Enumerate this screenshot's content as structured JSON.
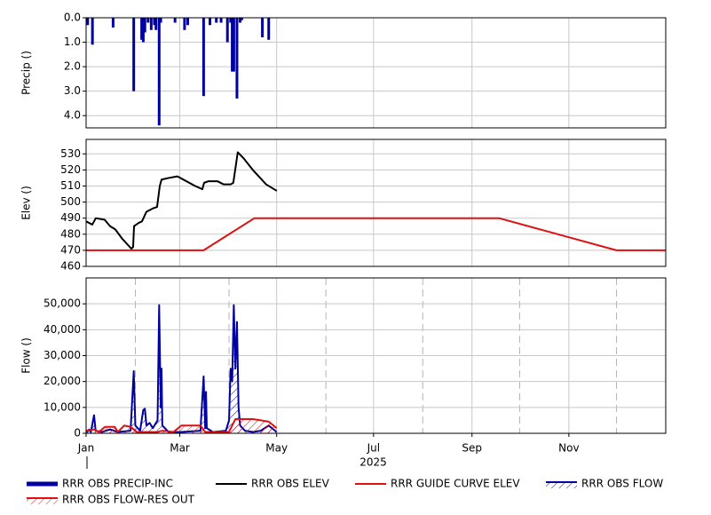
{
  "chart_data": [
    {
      "type": "bar",
      "ylabel": "Precip ()",
      "invert_y": true,
      "grid": true,
      "xlim": [
        0,
        365
      ],
      "xticks": [
        0,
        59,
        120,
        181,
        243,
        304
      ],
      "ylim": [
        0,
        4.5
      ],
      "yticks": [
        {
          "value": 0,
          "label": "0.0"
        },
        {
          "value": 1,
          "label": "1.0"
        },
        {
          "value": 2,
          "label": "2.0"
        },
        {
          "value": 3,
          "label": "3.0"
        },
        {
          "value": 4,
          "label": "4.0"
        }
      ],
      "series": [
        {
          "name": "RRR OBS PRECIP-INC",
          "color": "#0000a0",
          "x": [
            1,
            4,
            17,
            30,
            35,
            36,
            37,
            39,
            41,
            43,
            44,
            46,
            47,
            56,
            62,
            64,
            74,
            78,
            82,
            85,
            89,
            91,
            92,
            93,
            95,
            97,
            98,
            111,
            115
          ],
          "values": [
            0.3,
            1.1,
            0.4,
            3.0,
            0.9,
            1.0,
            0.6,
            0.2,
            0.5,
            0.3,
            0.5,
            4.4,
            0.2,
            0.2,
            0.5,
            0.3,
            3.2,
            0.3,
            0.2,
            0.2,
            1.0,
            0.2,
            2.2,
            2.2,
            3.3,
            0.2,
            0.1,
            0.8,
            0.9
          ]
        }
      ]
    },
    {
      "type": "line",
      "ylabel": "Elev ()",
      "grid": true,
      "xlim": [
        0,
        365
      ],
      "xticks": [
        0,
        59,
        120,
        181,
        243,
        304
      ],
      "ylim": [
        460,
        539
      ],
      "yticks": [
        460,
        470,
        480,
        490,
        500,
        510,
        520,
        530
      ],
      "series": [
        {
          "name": "RRR OBS ELEV",
          "color": "#000000",
          "x": [
            0,
            3.9,
            6.1,
            11.7,
            15.1,
            18.4,
            22.9,
            28.5,
            29.6,
            30.2,
            33,
            35.2,
            38,
            41.9,
            44.7,
            46.4,
            47.5,
            52,
            57.5,
            63.1,
            68.7,
            73.2,
            74.3,
            77.1,
            82.7,
            86.6,
            91,
            92.7,
            95.5,
            99.4,
            105,
            113.4,
            120.1
          ],
          "values": [
            488,
            486,
            490,
            489,
            485,
            483,
            477,
            471,
            472,
            485,
            487,
            488,
            494,
            496,
            497,
            510,
            514,
            515,
            516,
            513,
            510,
            508,
            512,
            513,
            513,
            511,
            511,
            512,
            531,
            527,
            520,
            511,
            507
          ]
        },
        {
          "name": "RRR GUIDE CURVE ELEV",
          "color": "#e01010",
          "x": [
            0,
            74,
            106,
            260,
            334,
            365
          ],
          "values": [
            470,
            470,
            490,
            490,
            470,
            470
          ]
        }
      ]
    },
    {
      "type": "area",
      "ylabel": "Flow ()",
      "xlabel": "2025",
      "grid": true,
      "xlim": [
        0,
        365
      ],
      "xticks": [
        {
          "value": 0,
          "label": "Jan"
        },
        {
          "value": 59,
          "label": "Mar"
        },
        {
          "value": 120,
          "label": "May"
        },
        {
          "value": 181,
          "label": "Jul"
        },
        {
          "value": 243,
          "label": "Sep"
        },
        {
          "value": 304,
          "label": "Nov"
        }
      ],
      "minor_xticks": [
        31,
        90,
        151,
        212,
        273,
        334
      ],
      "ylim": [
        0,
        60000
      ],
      "yticks": [
        0,
        {
          "value": 10000,
          "label": "10,000"
        },
        {
          "value": 20000,
          "label": "20,000"
        },
        {
          "value": 30000,
          "label": "30,000"
        },
        {
          "value": 40000,
          "label": "40,000"
        },
        {
          "value": 50000,
          "label": "50,000"
        }
      ],
      "series": [
        {
          "name": "RRR OBS FLOW",
          "color": "#0000a0",
          "x": [
            0,
            2,
            3,
            5,
            6,
            10,
            15,
            20,
            28,
            30,
            31,
            34,
            36,
            37,
            38,
            40,
            42,
            45,
            46,
            47,
            47.5,
            48,
            52,
            60,
            72,
            74,
            75,
            75.5,
            76,
            80,
            88,
            90,
            91,
            92,
            93,
            94,
            95,
            96,
            97,
            100,
            105,
            110,
            115,
            118,
            120
          ],
          "values": [
            500,
            1500,
            500,
            7000,
            1000,
            500,
            1500,
            500,
            1000,
            24000,
            3000,
            1000,
            9000,
            9500,
            3000,
            4000,
            2000,
            5000,
            49500,
            10000,
            25000,
            3000,
            500,
            500,
            1000,
            22000,
            2000,
            16000,
            2000,
            500,
            1000,
            5000,
            25000,
            20000,
            49500,
            25000,
            43000,
            10000,
            3000,
            1000,
            500,
            1000,
            3000,
            1500,
            500
          ]
        },
        {
          "name": "RRR OBS FLOW-RES OUT",
          "color": "#e01010",
          "x": [
            0,
            5,
            8,
            12,
            18,
            20,
            24,
            28,
            32,
            45,
            48,
            55,
            60,
            72,
            75,
            90,
            94,
            105,
            110,
            115,
            118,
            120
          ],
          "values": [
            1000,
            1500,
            500,
            2500,
            2500,
            500,
            3000,
            2500,
            500,
            500,
            1000,
            500,
            3000,
            3000,
            500,
            500,
            5500,
            5500,
            5000,
            4500,
            3000,
            2000
          ]
        }
      ]
    }
  ]
}
